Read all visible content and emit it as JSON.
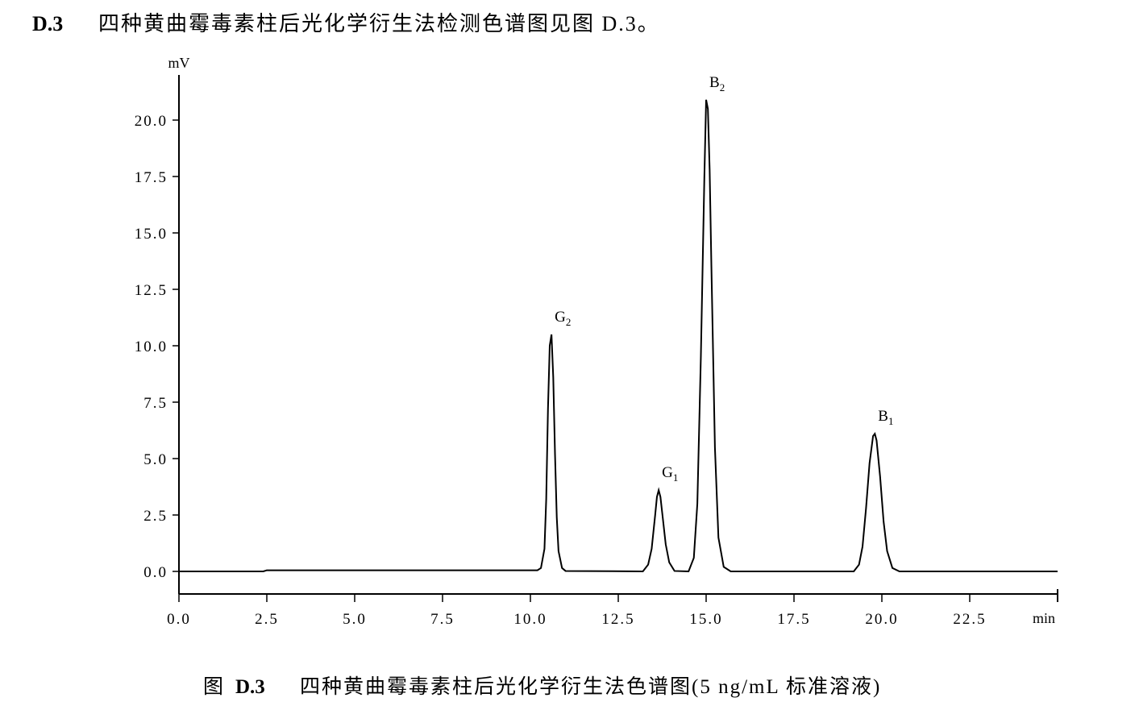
{
  "heading": {
    "number": "D.3",
    "text": "四种黄曲霉毒素柱后光化学衍生法检测色谱图见图 D.3。"
  },
  "chart_data": {
    "type": "line",
    "ylabel": "mV",
    "xlabel": "min",
    "color": "#000000",
    "xlim": [
      0,
      25
    ],
    "ylim": [
      -1,
      22
    ],
    "xticks": [
      {
        "value": 0,
        "label": "0.0"
      },
      {
        "value": 2.5,
        "label": "2.5"
      },
      {
        "value": 5,
        "label": "5.0"
      },
      {
        "value": 7.5,
        "label": "7.5"
      },
      {
        "value": 10,
        "label": "10.0"
      },
      {
        "value": 12.5,
        "label": "12.5"
      },
      {
        "value": 15,
        "label": "15.0"
      },
      {
        "value": 17.5,
        "label": "17.5"
      },
      {
        "value": 20,
        "label": "20.0"
      },
      {
        "value": 22.5,
        "label": "22.5"
      }
    ],
    "yticks": [
      {
        "value": 0,
        "label": "0.0"
      },
      {
        "value": 2.5,
        "label": "2.5"
      },
      {
        "value": 5,
        "label": "5.0"
      },
      {
        "value": 7.5,
        "label": "7.5"
      },
      {
        "value": 10,
        "label": "10.0"
      },
      {
        "value": 12.5,
        "label": "12.5"
      },
      {
        "value": 15,
        "label": "15.0"
      },
      {
        "value": 17.5,
        "label": "17.5"
      },
      {
        "value": 20,
        "label": "20.0"
      }
    ],
    "x": [
      0,
      2.4,
      2.5,
      9.0,
      10.2,
      10.3,
      10.4,
      10.45,
      10.5,
      10.55,
      10.6,
      10.65,
      10.7,
      10.75,
      10.8,
      10.9,
      11.0,
      13.2,
      13.35,
      13.45,
      13.55,
      13.6,
      13.65,
      13.7,
      13.75,
      13.85,
      13.95,
      14.1,
      14.5,
      14.65,
      14.75,
      14.85,
      14.95,
      15.0,
      15.05,
      15.1,
      15.15,
      15.25,
      15.35,
      15.5,
      15.7,
      19.2,
      19.35,
      19.45,
      19.55,
      19.65,
      19.75,
      19.8,
      19.85,
      19.95,
      20.05,
      20.15,
      20.3,
      20.5,
      25
    ],
    "series": [
      {
        "color": "#000000",
        "values": [
          0,
          0,
          0.05,
          0.05,
          0.05,
          0.15,
          1.0,
          3.2,
          7.2,
          10.0,
          10.5,
          8.6,
          5.2,
          2.4,
          0.9,
          0.15,
          0.02,
          0,
          0.3,
          1.0,
          2.5,
          3.3,
          3.6,
          3.3,
          2.6,
          1.2,
          0.4,
          0.02,
          0,
          0.6,
          3.0,
          9.5,
          17.5,
          20.9,
          20.5,
          17.8,
          13.5,
          5.5,
          1.5,
          0.2,
          0,
          0,
          0.3,
          1.1,
          2.8,
          4.8,
          6.0,
          6.1,
          5.8,
          4.2,
          2.2,
          0.9,
          0.15,
          0,
          0
        ]
      }
    ],
    "annotations": [
      {
        "text": "G",
        "sub": "2",
        "x": 10.6,
        "y": 10.5
      },
      {
        "text": "G",
        "sub": "1",
        "x": 13.65,
        "y": 3.6
      },
      {
        "text": "B",
        "sub": "2",
        "x": 15.0,
        "y": 20.9
      },
      {
        "text": "B",
        "sub": "1",
        "x": 19.8,
        "y": 6.1
      }
    ]
  },
  "caption": {
    "prefix": "图",
    "number": "D.3",
    "text": "四种黄曲霉毒素柱后光化学衍生法色谱图(5 ng/mL 标准溶液)"
  }
}
